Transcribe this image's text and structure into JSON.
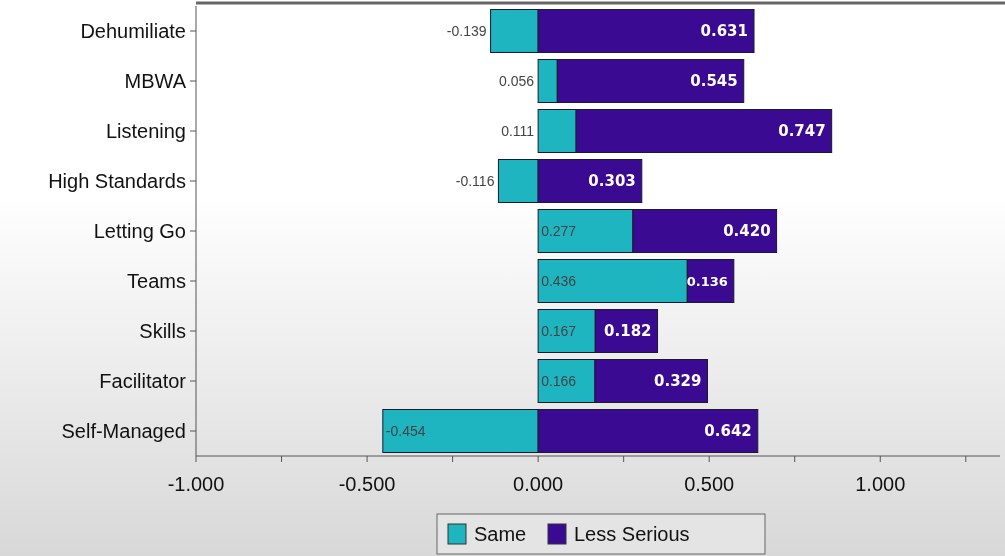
{
  "chart_data": {
    "type": "bar",
    "orientation": "horizontal",
    "stacked": true,
    "categories": [
      "Dehumiliate",
      "MBWA",
      "Listening",
      "High Standards",
      "Letting Go",
      "Teams",
      "Skills",
      "Facilitator",
      "Self-Managed"
    ],
    "series": [
      {
        "name": "Same",
        "color": "#1fb5c0",
        "values": [
          -0.139,
          0.056,
          0.111,
          -0.116,
          0.277,
          0.436,
          0.167,
          0.166,
          -0.454
        ],
        "value_labels": [
          "-0.139",
          "0.056",
          "0.111",
          "-0.116",
          "0.277",
          "0.436",
          "0.167",
          "0.166",
          "-0.454"
        ]
      },
      {
        "name": "Less Serious",
        "color": "#3a0a92",
        "values": [
          0.631,
          0.545,
          0.747,
          0.303,
          0.42,
          0.136,
          0.182,
          0.329,
          0.642
        ],
        "value_labels": [
          "0.631",
          "0.545",
          "0.747",
          "0.303",
          "0.420",
          "0.136",
          "0.182",
          "0.329",
          "0.642"
        ]
      }
    ],
    "xlim": [
      -1.0,
      1.35
    ],
    "xticks": [
      {
        "value": -1,
        "label": "-1.000"
      },
      {
        "value": -0.75,
        "label": null
      },
      {
        "value": -0.5,
        "label": "-0.500"
      },
      {
        "value": -0.25,
        "label": null
      },
      {
        "value": 0,
        "label": "0.000"
      },
      {
        "value": 0.25,
        "label": null
      },
      {
        "value": 0.5,
        "label": "0.500"
      },
      {
        "value": 0.75,
        "label": null
      },
      {
        "value": 1,
        "label": "1.000"
      },
      {
        "value": 1.25,
        "label": null
      }
    ],
    "legend": "bottom",
    "grid": false
  }
}
